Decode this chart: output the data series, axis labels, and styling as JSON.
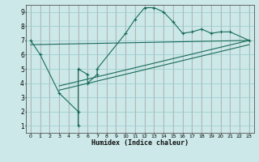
{
  "title": "",
  "xlabel": "Humidex (Indice chaleur)",
  "xlim": [
    -0.5,
    23.5
  ],
  "ylim": [
    0.5,
    9.5
  ],
  "xticks": [
    0,
    1,
    2,
    3,
    4,
    5,
    6,
    7,
    8,
    9,
    10,
    11,
    12,
    13,
    14,
    15,
    16,
    17,
    18,
    19,
    20,
    21,
    22,
    23
  ],
  "yticks": [
    1,
    2,
    3,
    4,
    5,
    6,
    7,
    8,
    9
  ],
  "bg_color": "#cce8e8",
  "grid_color_major": "#bb9999",
  "grid_color_minor": "#99cccc",
  "line_color": "#1a6b5a",
  "curve1_x": [
    0,
    1,
    3,
    5,
    5,
    5,
    6,
    6,
    7,
    7,
    10,
    11,
    12,
    13,
    14,
    15,
    16,
    17,
    18,
    19,
    20,
    21,
    23
  ],
  "curve1_y": [
    7.0,
    6.0,
    3.3,
    2.0,
    1.0,
    5.0,
    4.6,
    4.0,
    4.6,
    5.0,
    7.5,
    8.5,
    9.3,
    9.3,
    9.0,
    8.3,
    7.5,
    7.6,
    7.8,
    7.5,
    7.6,
    7.6,
    7.0
  ],
  "line2_x": [
    0,
    23
  ],
  "line2_y": [
    6.7,
    7.0
  ],
  "line3_x": [
    3,
    23
  ],
  "line3_y": [
    3.8,
    7.0
  ],
  "line4_x": [
    3,
    23
  ],
  "line4_y": [
    3.5,
    6.7
  ],
  "figsize": [
    3.2,
    2.0
  ],
  "dpi": 100
}
